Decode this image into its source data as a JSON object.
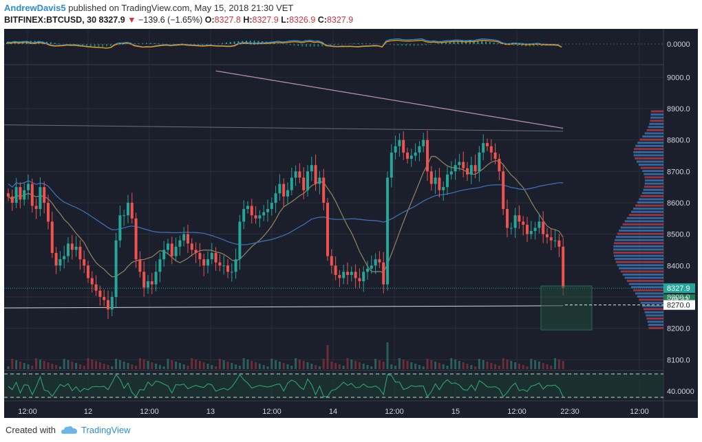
{
  "header": {
    "author": "AndrewDavis5",
    "published_text": "published on TradingView.com, May 15, 2018 21:30 VET",
    "symbol": "BITFINEX:BTCUSD, 30",
    "last": "8327.9",
    "change": "−139.6 (−1.65%)",
    "o_label": "O:",
    "o": "8327.8",
    "h_label": "H:",
    "h": "8327.9",
    "l_label": "L:",
    "l": "8326.9",
    "c_label": "C:",
    "c": "8327.9"
  },
  "footer": {
    "created_with": "Created with",
    "brand": "TradingView"
  },
  "colors": {
    "background": "#1b1f2b",
    "up": "#26a69a",
    "down": "#ef5350",
    "grid": "#2a2e39",
    "axis_text": "#d1d4dc",
    "ma_blue": "#3d6fb3",
    "ma_pink": "#b78ab0",
    "ma_tan": "#8c7f60",
    "macd": "#2196f3",
    "signal": "#ff9800"
  },
  "chart_data": {
    "type": "candlestick",
    "symbol": "BITFINEX:BTCUSD",
    "interval": "30",
    "y_ticks": [
      "9000.0",
      "8900.0",
      "8800.0",
      "8700.0",
      "8600.0",
      "8500.0",
      "8400.0",
      "8300.0",
      "8200.0",
      "8100.0"
    ],
    "ylim": [
      8070,
      9040
    ],
    "x_ticks": [
      "12:00",
      "12",
      "12:00",
      "13",
      "12:00",
      "14",
      "12:00",
      "15",
      "12:00",
      "22:30",
      "12:00"
    ],
    "last_price_label": "8327.9",
    "countdown_label": "29:32",
    "level_label": "8270.0",
    "macd_tick": "0.0000",
    "rsi_tick": "40.0000",
    "closes": [
      8620,
      8600,
      8650,
      8610,
      8640,
      8660,
      8590,
      8580,
      8650,
      8600,
      8540,
      8440,
      8400,
      8420,
      8430,
      8470,
      8450,
      8460,
      8420,
      8400,
      8360,
      8340,
      8320,
      8300,
      8290,
      8260,
      8300,
      8480,
      8560,
      8560,
      8600,
      8550,
      8420,
      8380,
      8330,
      8350,
      8340,
      8380,
      8420,
      8450,
      8470,
      8430,
      8460,
      8480,
      8500,
      8470,
      8450,
      8440,
      8420,
      8400,
      8420,
      8440,
      8410,
      8400,
      8400,
      8380,
      8380,
      8420,
      8540,
      8580,
      8590,
      8560,
      8550,
      8560,
      8570,
      8580,
      8600,
      8630,
      8660,
      8620,
      8640,
      8680,
      8700,
      8680,
      8640,
      8700,
      8720,
      8660,
      8680,
      8600,
      8430,
      8400,
      8370,
      8360,
      8380,
      8370,
      8380,
      8360,
      8350,
      8380,
      8390,
      8400,
      8420,
      8410,
      8340,
      8680,
      8760,
      8780,
      8800,
      8760,
      8740,
      8750,
      8760,
      8780,
      8800,
      8700,
      8660,
      8680,
      8640,
      8650,
      8690,
      8700,
      8720,
      8730,
      8710,
      8690,
      8720,
      8700,
      8760,
      8790,
      8780,
      8760,
      8740,
      8700,
      8580,
      8520,
      8520,
      8560,
      8540,
      8530,
      8500,
      8510,
      8520,
      8540,
      8500,
      8490,
      8480,
      8480,
      8460,
      8328
    ]
  }
}
